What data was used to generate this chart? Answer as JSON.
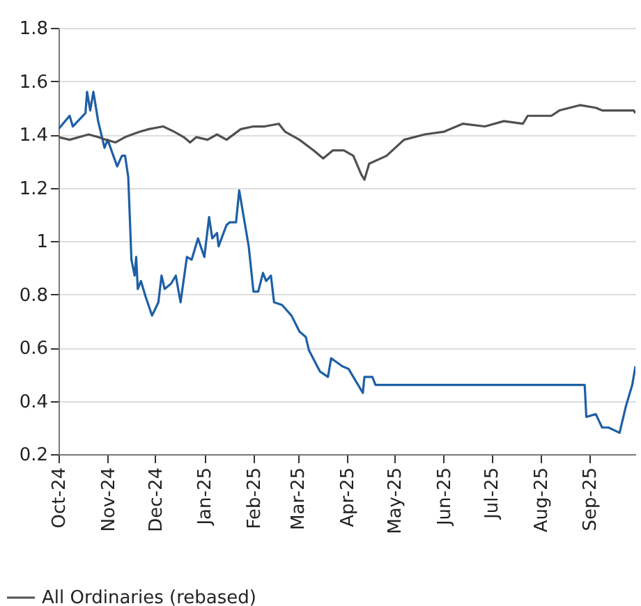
{
  "chart_data": {
    "type": "line",
    "series": [
      {
        "color": "#1f5fa5",
        "x": [
          "2024-10-01",
          "2024-10-08",
          "2024-10-10",
          "2024-10-18",
          "2024-10-19",
          "2024-10-21",
          "2024-10-23",
          "2024-10-26",
          "2024-10-30",
          "2024-11-01",
          "2024-11-07",
          "2024-11-10",
          "2024-11-12",
          "2024-11-14",
          "2024-11-16",
          "2024-11-18",
          "2024-11-19",
          "2024-11-20",
          "2024-11-22",
          "2024-11-25",
          "2024-11-29",
          "2024-12-03",
          "2024-12-05",
          "2024-12-07",
          "2024-12-11",
          "2024-12-14",
          "2024-12-17",
          "2024-12-21",
          "2024-12-24",
          "2024-12-28",
          "2025-01-01",
          "2025-01-04",
          "2025-01-06",
          "2025-01-09",
          "2025-01-10",
          "2025-01-15",
          "2025-01-17",
          "2025-01-21",
          "2025-01-23",
          "2025-01-29",
          "2025-02-01",
          "2025-02-04",
          "2025-02-07",
          "2025-02-09",
          "2025-02-12",
          "2025-02-14",
          "2025-02-19",
          "2025-02-25",
          "2025-03-02",
          "2025-03-06",
          "2025-03-08",
          "2025-03-15",
          "2025-03-20",
          "2025-03-22",
          "2025-03-29",
          "2025-04-02",
          "2025-04-06",
          "2025-04-11",
          "2025-04-12",
          "2025-04-17",
          "2025-04-19",
          "2025-08-29",
          "2025-08-30",
          "2025-09-05",
          "2025-09-09",
          "2025-09-13",
          "2025-09-20",
          "2025-09-24",
          "2025-09-28",
          "2025-09-30"
        ],
        "values": [
          1.42,
          1.47,
          1.43,
          1.48,
          1.56,
          1.49,
          1.56,
          1.45,
          1.35,
          1.38,
          1.28,
          1.32,
          1.32,
          1.24,
          0.93,
          0.87,
          0.94,
          0.82,
          0.85,
          0.79,
          0.72,
          0.77,
          0.87,
          0.82,
          0.84,
          0.87,
          0.77,
          0.94,
          0.93,
          1.01,
          0.94,
          1.09,
          1.01,
          1.03,
          0.98,
          1.06,
          1.07,
          1.07,
          1.19,
          0.98,
          0.81,
          0.81,
          0.88,
          0.85,
          0.87,
          0.77,
          0.76,
          0.72,
          0.66,
          0.64,
          0.59,
          0.51,
          0.49,
          0.56,
          0.53,
          0.52,
          0.48,
          0.43,
          0.49,
          0.49,
          0.46,
          0.46,
          0.34,
          0.35,
          0.3,
          0.3,
          0.28,
          0.38,
          0.46,
          0.53
        ]
      },
      {
        "name": "All Ordinaries (rebased)",
        "color": "#505050",
        "x": [
          "2024-10-01",
          "2024-10-08",
          "2024-10-20",
          "2024-10-26",
          "2024-10-31",
          "2024-11-06",
          "2024-11-12",
          "2024-11-21",
          "2024-11-27",
          "2024-12-06",
          "2024-12-13",
          "2024-12-19",
          "2024-12-23",
          "2024-12-27",
          "2025-01-03",
          "2025-01-09",
          "2025-01-15",
          "2025-01-24",
          "2025-02-01",
          "2025-02-08",
          "2025-02-17",
          "2025-02-21",
          "2025-03-02",
          "2025-03-11",
          "2025-03-17",
          "2025-03-23",
          "2025-03-30",
          "2025-04-05",
          "2025-04-10",
          "2025-04-12",
          "2025-04-15",
          "2025-04-26",
          "2025-05-07",
          "2025-05-20",
          "2025-06-01",
          "2025-06-13",
          "2025-06-27",
          "2025-07-09",
          "2025-07-21",
          "2025-07-24",
          "2025-08-08",
          "2025-08-13",
          "2025-08-26",
          "2025-09-05",
          "2025-09-09",
          "2025-09-22",
          "2025-09-29",
          "2025-09-30"
        ],
        "values": [
          1.39,
          1.38,
          1.4,
          1.39,
          1.38,
          1.37,
          1.39,
          1.41,
          1.42,
          1.43,
          1.41,
          1.39,
          1.37,
          1.39,
          1.38,
          1.4,
          1.38,
          1.42,
          1.43,
          1.43,
          1.44,
          1.41,
          1.38,
          1.34,
          1.31,
          1.34,
          1.34,
          1.32,
          1.25,
          1.23,
          1.29,
          1.32,
          1.38,
          1.4,
          1.41,
          1.44,
          1.43,
          1.45,
          1.44,
          1.47,
          1.47,
          1.49,
          1.51,
          1.5,
          1.49,
          1.49,
          1.49,
          1.48
        ]
      }
    ],
    "xlim": [
      "2024-10-01",
      "2025-09-30"
    ],
    "xticks": [
      {
        "value": "2024-10",
        "label": "Oct-24"
      },
      {
        "value": "2024-11",
        "label": "Nov-24"
      },
      {
        "value": "2024-12",
        "label": "Dec-24"
      },
      {
        "value": "2025-01",
        "label": "Jan-25"
      },
      {
        "value": "2025-02",
        "label": "Feb-25"
      },
      {
        "value": "2025-03",
        "label": "Mar-25"
      },
      {
        "value": "2025-04",
        "label": "Apr-25"
      },
      {
        "value": "2025-05",
        "label": "May-25"
      },
      {
        "value": "2025-06",
        "label": "Jun-25"
      },
      {
        "value": "2025-07",
        "label": "Jul-25"
      },
      {
        "value": "2025-08",
        "label": "Aug-25"
      },
      {
        "value": "2025-09",
        "label": "Sep-25"
      }
    ],
    "ylim": [
      0.2,
      1.8
    ],
    "yticks": [
      0.2,
      0.4,
      0.6,
      0.8,
      1,
      1.2,
      1.4,
      1.6,
      1.8
    ],
    "grid": "y",
    "legend": "bottom left"
  }
}
